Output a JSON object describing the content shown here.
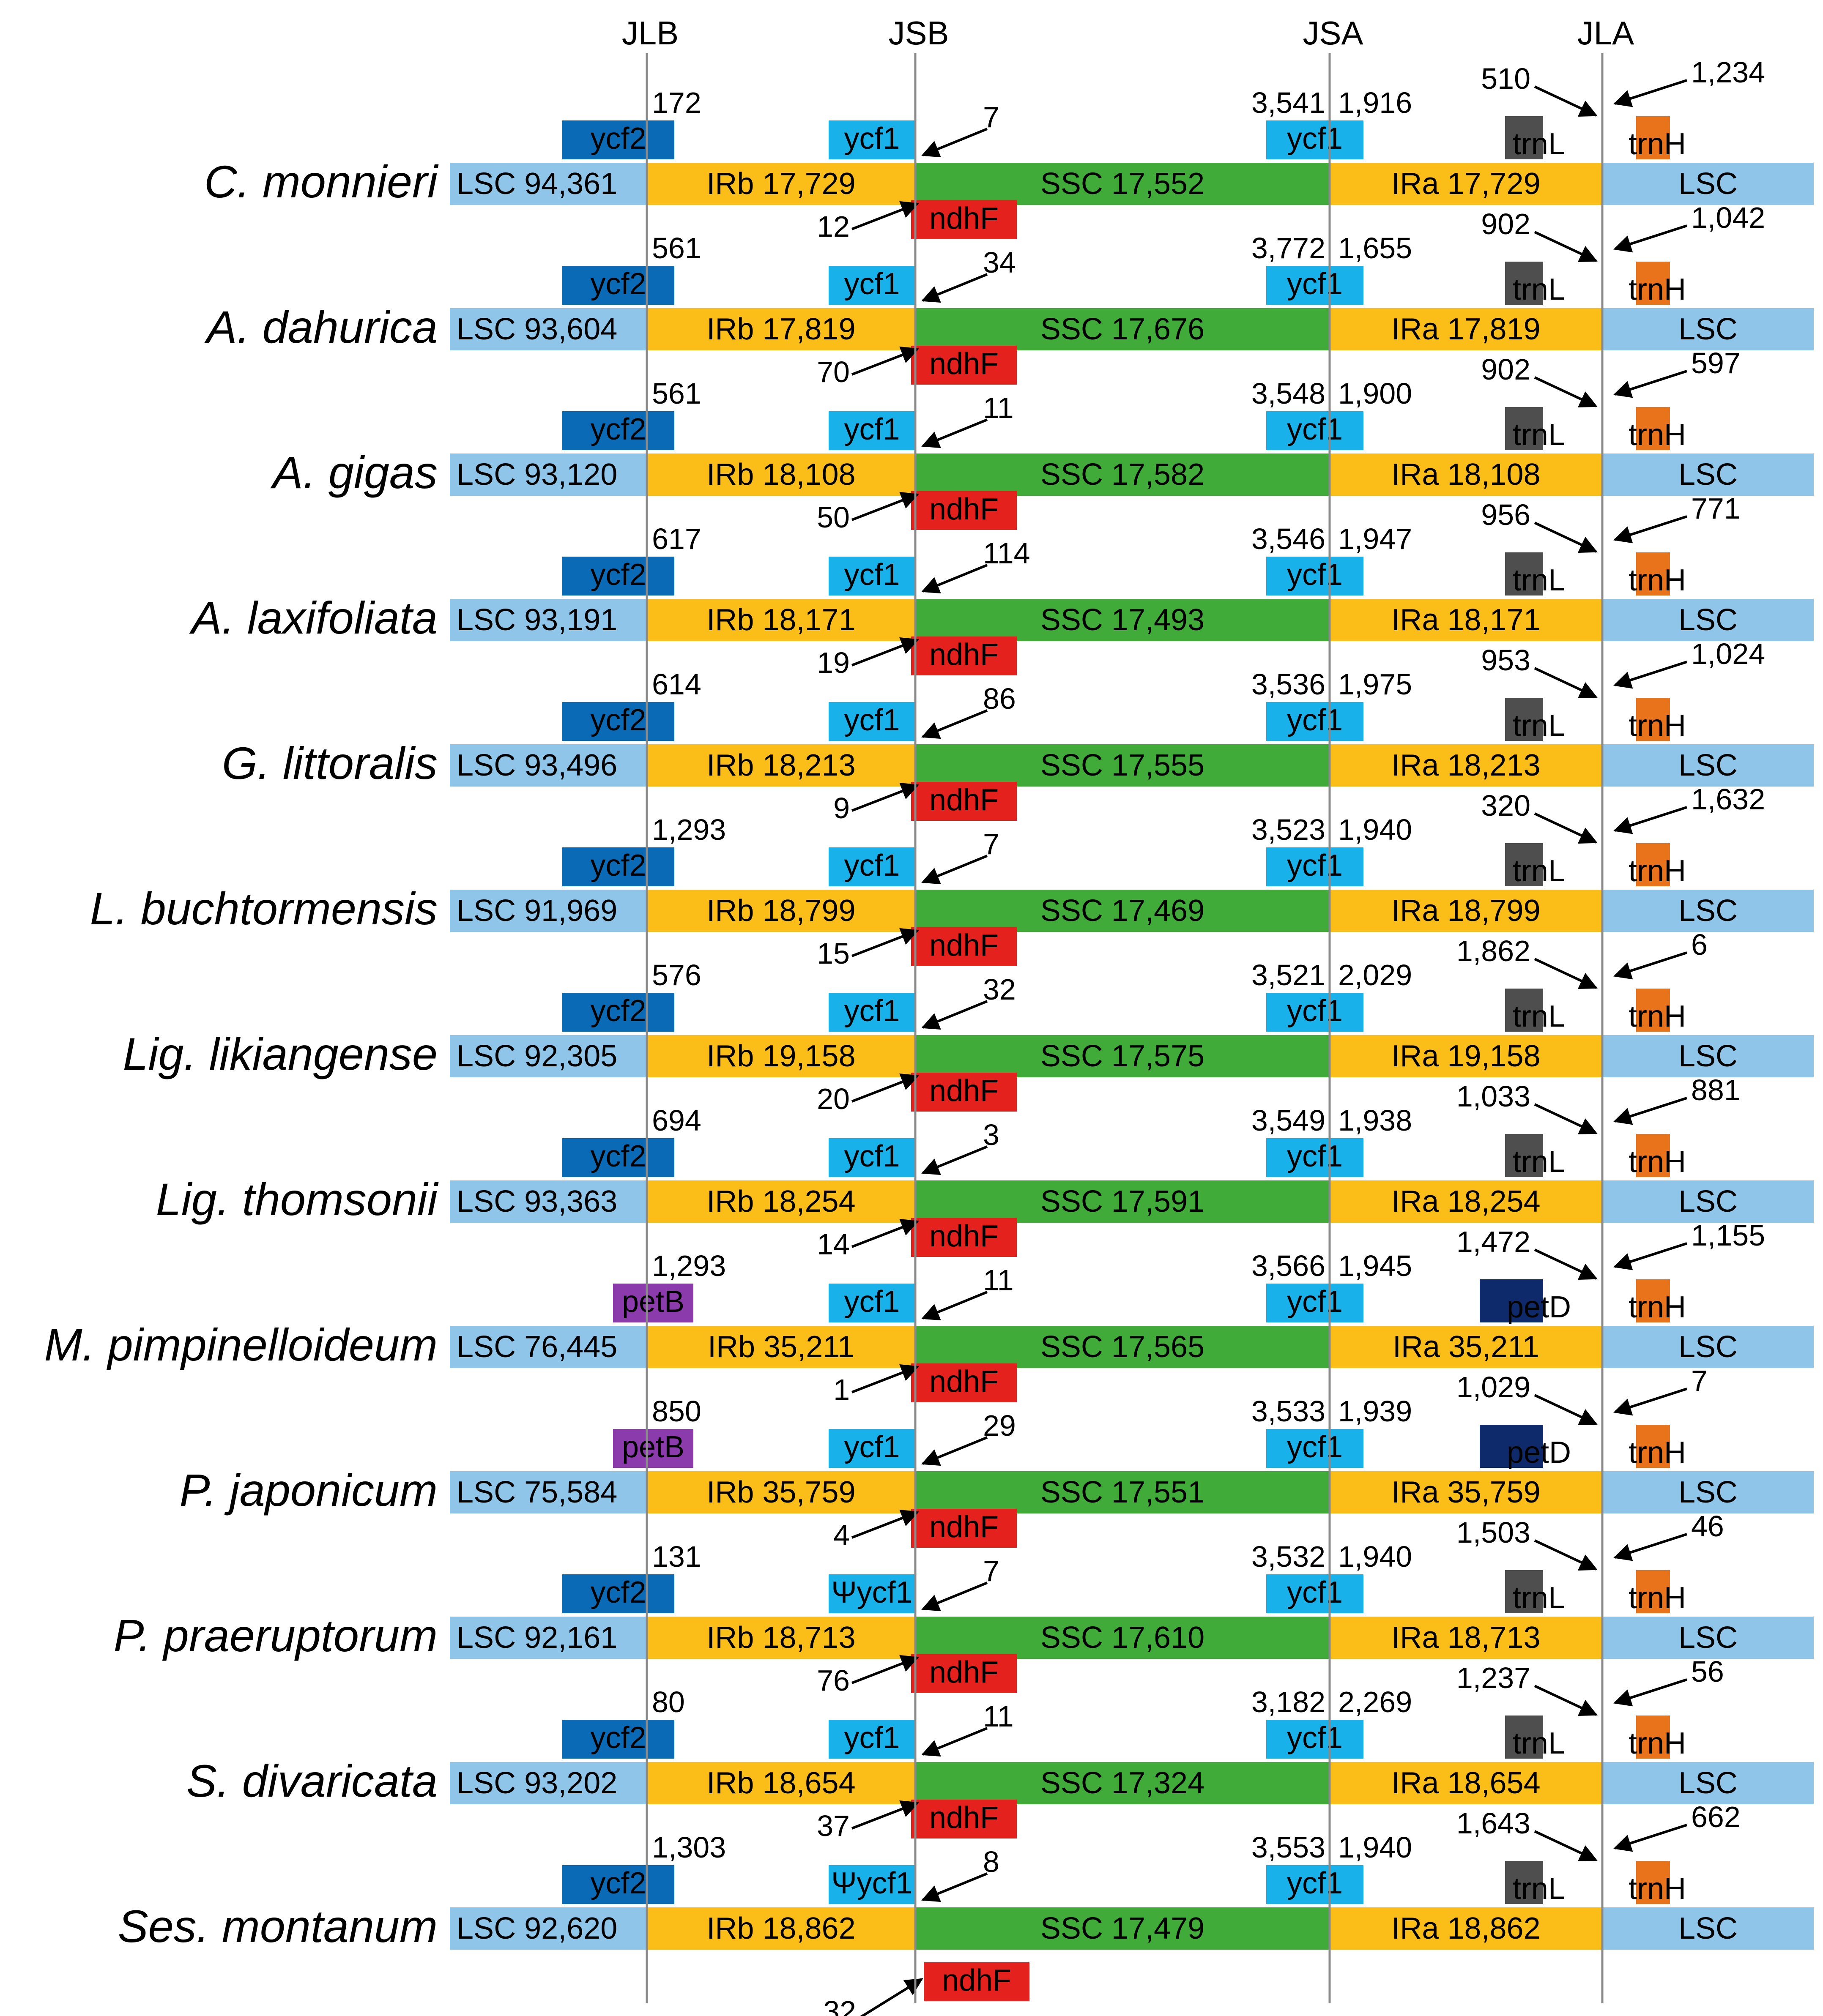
{
  "headers": [
    "JLB",
    "JSB",
    "JSA",
    "JLA"
  ],
  "colors": {
    "LSC": "#8fc5e8",
    "IR": "#fbbd18",
    "SSC": "#41ab3a",
    "ycf2": "#0b6ab5",
    "ycf1": "#18b1ea",
    "ndhF": "#e4211c",
    "trnL": "#4e4e4e",
    "trnH": "#e8731a",
    "petB": "#8b3bab",
    "petD": "#0e2a6b"
  },
  "rows": [
    {
      "species": "C. monnieri",
      "lsc": "LSC 94,361",
      "irb": "IRb  17,729",
      "ssc": "SSC   17,552",
      "ira": "IRa  17,729",
      "lsc2": "LSC",
      "jlb_gene": "ycf2",
      "jlb_num": "172",
      "jsb_gene": "ycf1",
      "jsb_num": "7",
      "ndhF_top": null,
      "ndhF_num_top": null,
      "jsa_left": "3,541",
      "jsa_right": "1,916",
      "jla_left_gene": "trnL",
      "jla_left_num": "510",
      "jla_right_gene": "trnH",
      "jla_right_num": "1,234"
    },
    {
      "species": "A. dahurica",
      "lsc": "LSC 93,604",
      "irb": "IRb  17,819",
      "ssc": "SSC   17,676",
      "ira": "IRa  17,819",
      "lsc2": "LSC",
      "jlb_gene": "ycf2",
      "jlb_num": "561",
      "jsb_gene": "ycf1",
      "jsb_num": "34",
      "ndhF_top": "ndhF",
      "ndhF_num_top": "12",
      "jsa_left": "3,772",
      "jsa_right": "1,655",
      "jla_left_gene": "trnL",
      "jla_left_num": "902",
      "jla_right_gene": "trnH",
      "jla_right_num": "1,042"
    },
    {
      "species": "A. gigas",
      "lsc": "LSC 93,120",
      "irb": "IRb  18,108",
      "ssc": "SSC   17,582",
      "ira": "IRa  18,108",
      "lsc2": "LSC",
      "jlb_gene": "ycf2",
      "jlb_num": "561",
      "jsb_gene": "ycf1",
      "jsb_num": "11",
      "ndhF_top": "ndhF",
      "ndhF_num_top": "70",
      "jsa_left": "3,548",
      "jsa_right": "1,900",
      "jla_left_gene": "trnL",
      "jla_left_num": "902",
      "jla_right_gene": "trnH",
      "jla_right_num": "597"
    },
    {
      "species": "A. laxifoliata",
      "lsc": "LSC 93,191",
      "irb": "IRb  18,171",
      "ssc": "SSC   17,493",
      "ira": "IRa  18,171",
      "lsc2": "LSC",
      "jlb_gene": "ycf2",
      "jlb_num": "617",
      "jsb_gene": "ycf1",
      "jsb_num": "114",
      "ndhF_top": "ndhF",
      "ndhF_num_top": "50",
      "jsa_left": "3,546",
      "jsa_right": "1,947",
      "jla_left_gene": "trnL",
      "jla_left_num": "956",
      "jla_right_gene": "trnH",
      "jla_right_num": "771"
    },
    {
      "species": "G. littoralis",
      "lsc": "LSC 93,496",
      "irb": "IRb  18,213",
      "ssc": "SSC   17,555",
      "ira": "IRa  18,213",
      "lsc2": "LSC",
      "jlb_gene": "ycf2",
      "jlb_num": "614",
      "jsb_gene": "ycf1",
      "jsb_num": "86",
      "ndhF_top": "ndhF",
      "ndhF_num_top": "19",
      "jsa_left": "3,536",
      "jsa_right": "1,975",
      "jla_left_gene": "trnL",
      "jla_left_num": "953",
      "jla_right_gene": "trnH",
      "jla_right_num": "1,024"
    },
    {
      "species": "L. buchtormensis",
      "lsc": "LSC 91,969",
      "irb": "IRb  18,799",
      "ssc": "SSC   17,469",
      "ira": "IRa  18,799",
      "lsc2": "LSC",
      "jlb_gene": "ycf2",
      "jlb_num": "1,293",
      "jsb_gene": "ycf1",
      "jsb_num": "7",
      "ndhF_top": "ndhF",
      "ndhF_num_top": "9",
      "jsa_left": "3,523",
      "jsa_right": "1,940",
      "jla_left_gene": "trnL",
      "jla_left_num": "320",
      "jla_right_gene": "trnH",
      "jla_right_num": "1,632"
    },
    {
      "species": "Lig. likiangense",
      "lsc": "LSC 92,305",
      "irb": "IRb  19,158",
      "ssc": "SSC   17,575",
      "ira": "IRa  19,158",
      "lsc2": "LSC",
      "jlb_gene": "ycf2",
      "jlb_num": "576",
      "jsb_gene": "ycf1",
      "jsb_num": "32",
      "ndhF_top": "ndhF",
      "ndhF_num_top": "15",
      "jsa_left": "3,521",
      "jsa_right": "2,029",
      "jla_left_gene": "trnL",
      "jla_left_num": "1,862",
      "jla_right_gene": "trnH",
      "jla_right_num": "6"
    },
    {
      "species": "Lig. thomsonii",
      "lsc": "LSC 93,363",
      "irb": "IRb  18,254",
      "ssc": "SSC   17,591",
      "ira": "IRa  18,254",
      "lsc2": "LSC",
      "jlb_gene": "ycf2",
      "jlb_num": "694",
      "jsb_gene": "ycf1",
      "jsb_num": "3",
      "ndhF_top": "ndhF",
      "ndhF_num_top": "20",
      "jsa_left": "3,549",
      "jsa_right": "1,938",
      "jla_left_gene": "trnL",
      "jla_left_num": "1,033",
      "jla_right_gene": "trnH",
      "jla_right_num": "881"
    },
    {
      "species": "M. pimpinelloideum",
      "lsc": "LSC 76,445",
      "irb": "IRb  35,211",
      "ssc": "SSC   17,565",
      "ira": "IRa  35,211",
      "lsc2": "LSC",
      "jlb_gene": "petB",
      "jlb_num": "1,293",
      "jsb_gene": "ycf1",
      "jsb_num": "11",
      "ndhF_top": "ndhF",
      "ndhF_num_top": "14",
      "jsa_left": "3,566",
      "jsa_right": "1,945",
      "jla_left_gene": "petD",
      "jla_left_num": "1,472",
      "jla_right_gene": "trnH",
      "jla_right_num": "1,155"
    },
    {
      "species": "P. japonicum",
      "lsc": "LSC 75,584",
      "irb": "IRb  35,759",
      "ssc": "SSC   17,551",
      "ira": "IRa  35,759",
      "lsc2": "LSC",
      "jlb_gene": "petB",
      "jlb_num": "850",
      "jsb_gene": "ycf1",
      "jsb_num": "29",
      "ndhF_top": "ndhF",
      "ndhF_num_top": "1",
      "jsa_left": "3,533",
      "jsa_right": "1,939",
      "jla_left_gene": "petD",
      "jla_left_num": "1,029",
      "jla_right_gene": "trnH",
      "jla_right_num": "7"
    },
    {
      "species": "P. praeruptorum",
      "lsc": "LSC 92,161",
      "irb": "IRb  18,713",
      "ssc": "SSC   17,610",
      "ira": "IRa  18,713",
      "lsc2": "LSC",
      "jlb_gene": "ycf2",
      "jlb_num": "131",
      "jsb_gene": "Ψycf1",
      "jsb_num": "7",
      "ndhF_top": "ndhF",
      "ndhF_num_top": "4",
      "jsa_left": "3,532",
      "jsa_right": "1,940",
      "jla_left_gene": "trnL",
      "jla_left_num": "1,503",
      "jla_right_gene": "trnH",
      "jla_right_num": "46"
    },
    {
      "species": "S. divaricata",
      "lsc": "LSC 93,202",
      "irb": "IRb  18,654",
      "ssc": "SSC   17,324",
      "ira": "IRa  18,654",
      "lsc2": "LSC",
      "jlb_gene": "ycf2",
      "jlb_num": "80",
      "jsb_gene": "ycf1",
      "jsb_num": "11",
      "ndhF_top": "ndhF",
      "ndhF_num_top": "76",
      "jsa_left": "3,182",
      "jsa_right": "2,269",
      "jla_left_gene": "trnL",
      "jla_left_num": "1,237",
      "jla_right_gene": "trnH",
      "jla_right_num": "56"
    },
    {
      "species": "Ses. montanum",
      "lsc": "LSC 92,620",
      "irb": "IRb  18,862",
      "ssc": "SSC   17,479",
      "ira": "IRa  18,862",
      "lsc2": "LSC",
      "jlb_gene": "ycf2",
      "jlb_num": "1,303",
      "jsb_gene": "Ψycf1",
      "jsb_num": "8",
      "ndhF_top": "ndhF",
      "ndhF_num_top": "37",
      "jsa_left": "3,553",
      "jsa_right": "1,940",
      "jla_left_gene": "trnL",
      "jla_left_num": "1,643",
      "jla_right_gene": "trnH",
      "jla_right_num": "662"
    }
  ],
  "bottom_ndhF": {
    "gene": "ndhF",
    "num": "32"
  }
}
